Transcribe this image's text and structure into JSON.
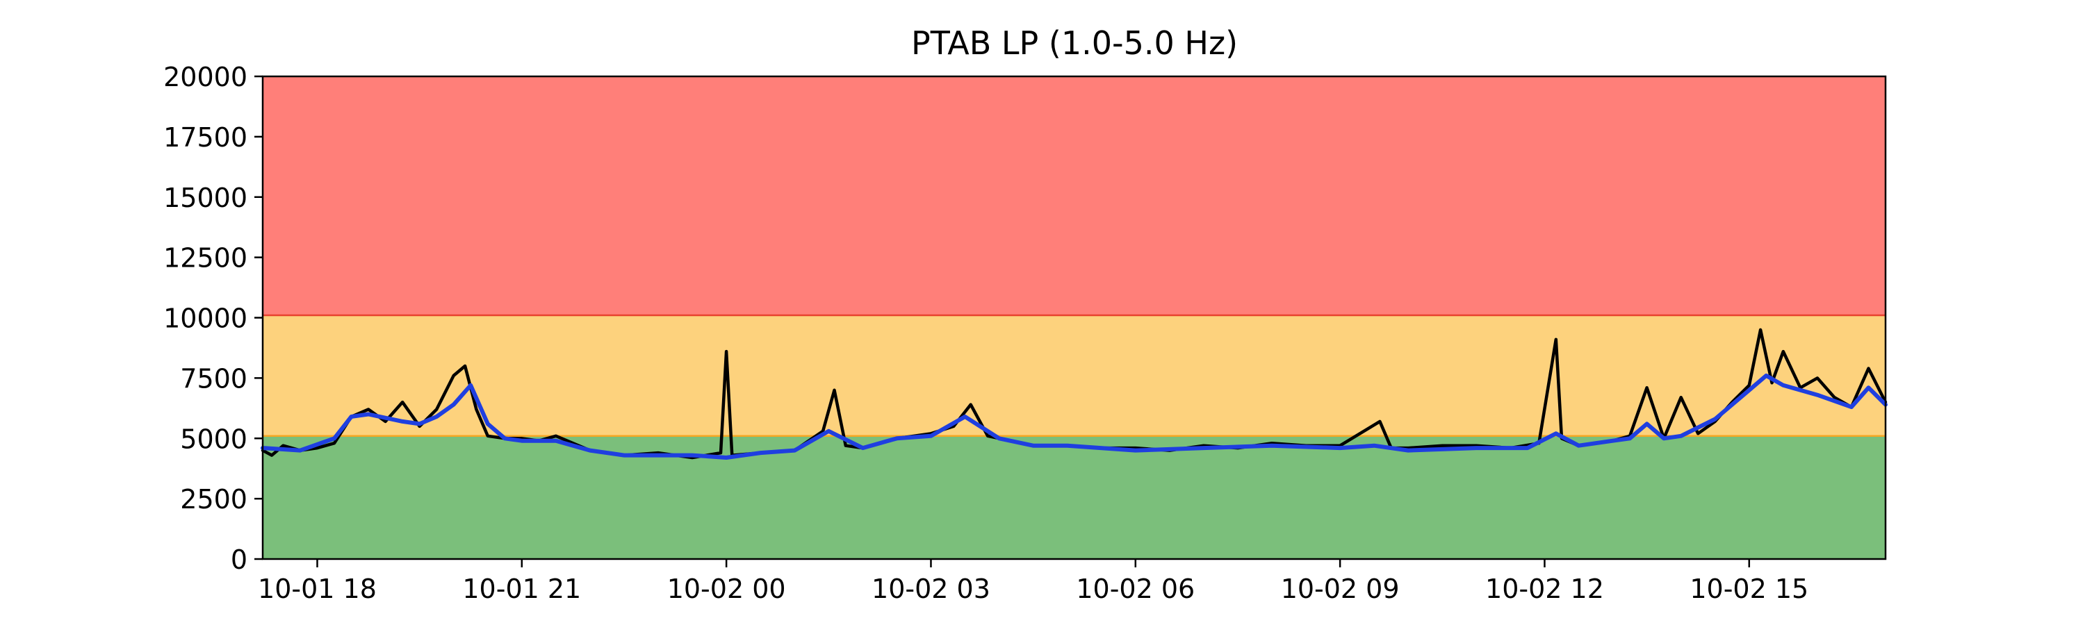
{
  "chart_data": {
    "type": "line",
    "title": "PTAB LP (1.0-5.0 Hz)",
    "xlabel": "",
    "ylabel": "",
    "x_range": [
      "10-01 17:12",
      "10-02 17:00"
    ],
    "ylim": [
      0,
      20000
    ],
    "grid": false,
    "legend": "none",
    "y_ticks": [
      0,
      2500,
      5000,
      7500,
      10000,
      12500,
      15000,
      17500,
      20000
    ],
    "y_tick_labels": [
      "0",
      "2500",
      "5000",
      "7500",
      "10000",
      "12500",
      "15000",
      "17500",
      "20000"
    ],
    "x_ticks": [
      "10-01 18:00",
      "10-01 21:00",
      "10-02 00:00",
      "10-02 03:00",
      "10-02 06:00",
      "10-02 09:00",
      "10-02 12:00",
      "10-02 15:00"
    ],
    "x_tick_labels": [
      "10-01 18",
      "10-01 21",
      "10-02 00",
      "10-02 03",
      "10-02 06",
      "10-02 09",
      "10-02 12",
      "10-02 15"
    ],
    "bands": [
      {
        "from": 0,
        "to": 5100,
        "color": "#7bbf7b"
      },
      {
        "from": 5100,
        "to": 10100,
        "color": "#fdd27d"
      },
      {
        "from": 10100,
        "to": 20000,
        "color": "#ff7f79"
      }
    ],
    "threshold_lines": [
      {
        "value": 5100,
        "color": "#f5a623"
      },
      {
        "value": 10100,
        "color": "#e8412f"
      }
    ],
    "series": [
      {
        "color": "#000000",
        "x": [
          "10-01 17:12",
          "10-01 17:20",
          "10-01 17:30",
          "10-01 17:45",
          "10-01 18:00",
          "10-01 18:15",
          "10-01 18:30",
          "10-01 18:45",
          "10-01 19:00",
          "10-01 19:15",
          "10-01 19:30",
          "10-01 19:45",
          "10-01 20:00",
          "10-01 20:10",
          "10-01 20:20",
          "10-01 20:30",
          "10-01 20:45",
          "10-01 21:00",
          "10-01 21:15",
          "10-01 21:30",
          "10-01 21:45",
          "10-01 22:00",
          "10-01 22:30",
          "10-01 23:00",
          "10-01 23:30",
          "10-01 23:55",
          "10-02 00:00",
          "10-02 00:05",
          "10-02 00:30",
          "10-02 01:00",
          "10-02 01:25",
          "10-02 01:35",
          "10-02 01:45",
          "10-02 02:00",
          "10-02 02:30",
          "10-02 03:00",
          "10-02 03:20",
          "10-02 03:35",
          "10-02 03:50",
          "10-02 04:10",
          "10-02 04:30",
          "10-02 05:00",
          "10-02 05:30",
          "10-02 06:00",
          "10-02 06:30",
          "10-02 07:00",
          "10-02 07:30",
          "10-02 08:00",
          "10-02 08:30",
          "10-02 09:00",
          "10-02 09:35",
          "10-02 09:45",
          "10-02 10:00",
          "10-02 10:30",
          "10-02 11:00",
          "10-02 11:30",
          "10-02 11:55",
          "10-02 12:10",
          "10-02 12:15",
          "10-02 12:30",
          "10-02 13:00",
          "10-02 13:15",
          "10-02 13:30",
          "10-02 13:45",
          "10-02 14:00",
          "10-02 14:15",
          "10-02 14:30",
          "10-02 14:45",
          "10-02 15:00",
          "10-02 15:10",
          "10-02 15:20",
          "10-02 15:30",
          "10-02 15:45",
          "10-02 16:00",
          "10-02 16:15",
          "10-02 16:30",
          "10-02 16:45",
          "10-02 17:00"
        ],
        "values": [
          4500,
          4300,
          4700,
          4500,
          4600,
          4800,
          5900,
          6200,
          5700,
          6500,
          5500,
          6200,
          7600,
          8000,
          6200,
          5100,
          5000,
          5000,
          4900,
          5100,
          4800,
          4500,
          4300,
          4400,
          4200,
          4400,
          8600,
          4300,
          4400,
          4500,
          5300,
          7000,
          4700,
          4600,
          5000,
          5200,
          5500,
          6400,
          5100,
          4900,
          4700,
          4700,
          4600,
          4600,
          4500,
          4700,
          4600,
          4800,
          4700,
          4700,
          5700,
          4600,
          4600,
          4700,
          4700,
          4600,
          4800,
          9100,
          5000,
          4700,
          4900,
          5100,
          7100,
          5000,
          6700,
          5200,
          5700,
          6500,
          7200,
          9500,
          7300,
          8600,
          7100,
          7500,
          6700,
          6300,
          7900,
          6500
        ]
      },
      {
        "color": "#1f3fe0",
        "x": [
          "10-01 17:12",
          "10-01 17:45",
          "10-01 18:15",
          "10-01 18:30",
          "10-01 18:45",
          "10-01 19:15",
          "10-01 19:30",
          "10-01 19:45",
          "10-01 20:00",
          "10-01 20:15",
          "10-01 20:30",
          "10-01 20:45",
          "10-01 21:00",
          "10-01 21:30",
          "10-01 22:00",
          "10-01 22:30",
          "10-01 23:00",
          "10-01 23:30",
          "10-02 00:00",
          "10-02 00:30",
          "10-02 01:00",
          "10-02 01:30",
          "10-02 02:00",
          "10-02 02:30",
          "10-02 03:00",
          "10-02 03:30",
          "10-02 04:00",
          "10-02 04:30",
          "10-02 05:00",
          "10-02 06:00",
          "10-02 07:00",
          "10-02 08:00",
          "10-02 09:00",
          "10-02 09:30",
          "10-02 10:00",
          "10-02 11:00",
          "10-02 11:45",
          "10-02 12:10",
          "10-02 12:30",
          "10-02 13:00",
          "10-02 13:15",
          "10-02 13:30",
          "10-02 13:45",
          "10-02 14:00",
          "10-02 14:30",
          "10-02 15:00",
          "10-02 15:15",
          "10-02 15:30",
          "10-02 16:00",
          "10-02 16:30",
          "10-02 16:45",
          "10-02 17:00"
        ],
        "values": [
          4600,
          4500,
          5000,
          5900,
          6000,
          5700,
          5600,
          5900,
          6400,
          7200,
          5600,
          5000,
          4900,
          4900,
          4500,
          4300,
          4300,
          4300,
          4200,
          4400,
          4500,
          5300,
          4600,
          5000,
          5100,
          5900,
          5000,
          4700,
          4700,
          4500,
          4600,
          4700,
          4600,
          4700,
          4500,
          4600,
          4600,
          5200,
          4700,
          4900,
          5000,
          5600,
          5000,
          5100,
          5800,
          7000,
          7600,
          7200,
          6800,
          6300,
          7100,
          6400
        ]
      }
    ]
  }
}
